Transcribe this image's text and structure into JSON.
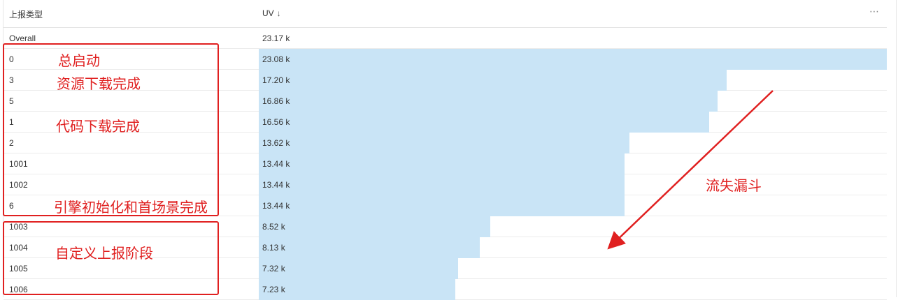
{
  "header": {
    "col_type": "上报类型",
    "col_uv": "UV",
    "sort_icon": "arrow-down",
    "more_icon": "ellipsis"
  },
  "rows": [
    {
      "type": "Overall",
      "uv": "23.17 k",
      "uv_value": 23.17
    },
    {
      "type": "0",
      "uv": "23.08 k",
      "uv_value": 23.08
    },
    {
      "type": "3",
      "uv": "17.20 k",
      "uv_value": 17.2
    },
    {
      "type": "5",
      "uv": "16.86 k",
      "uv_value": 16.86
    },
    {
      "type": "1",
      "uv": "16.56 k",
      "uv_value": 16.56
    },
    {
      "type": "2",
      "uv": "13.62 k",
      "uv_value": 13.62
    },
    {
      "type": "1001",
      "uv": "13.44 k",
      "uv_value": 13.44
    },
    {
      "type": "1002",
      "uv": "13.44 k",
      "uv_value": 13.44
    },
    {
      "type": "6",
      "uv": "13.44 k",
      "uv_value": 13.44
    },
    {
      "type": "1003",
      "uv": "8.52 k",
      "uv_value": 8.52
    },
    {
      "type": "1004",
      "uv": "8.13 k",
      "uv_value": 8.13
    },
    {
      "type": "1005",
      "uv": "7.32 k",
      "uv_value": 7.32
    },
    {
      "type": "1006",
      "uv": "7.23 k",
      "uv_value": 7.23
    }
  ],
  "bar_color": "#c9e4f6",
  "bar_max": 23.08,
  "annotations": {
    "color": "#e02020",
    "labels": {
      "start": "总启动",
      "resource_done": "资源下载完成",
      "code_done": "代码下载完成",
      "engine_done": "引擎初始化和首场景完成",
      "custom_stage": "自定义上报阶段",
      "funnel": "流失漏斗"
    }
  }
}
